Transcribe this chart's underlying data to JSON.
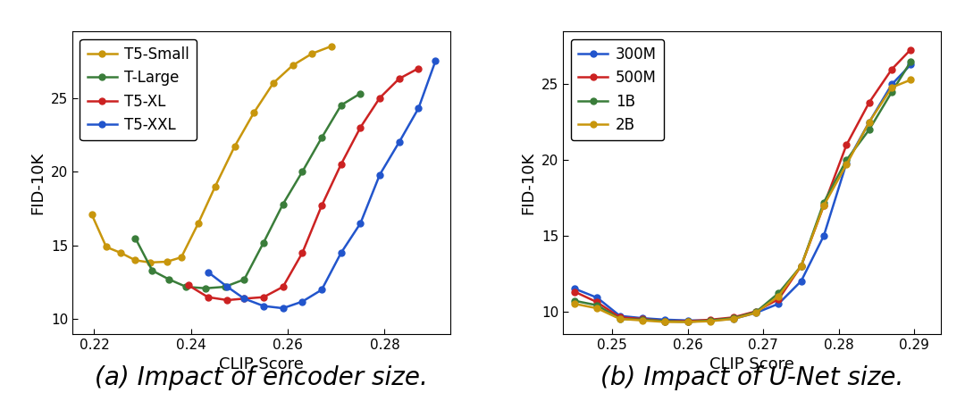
{
  "chart1": {
    "title": "(a) Impact of encoder size.",
    "xlabel": "CLIP Score",
    "ylabel": "FID-10K",
    "xlim": [
      0.2155,
      0.2935
    ],
    "ylim": [
      9.0,
      29.5
    ],
    "yticks": [
      10,
      15,
      20,
      25
    ],
    "xticks": [
      0.22,
      0.24,
      0.26,
      0.28
    ],
    "series": {
      "T5-Small": {
        "color": "#c8960c",
        "x": [
          0.2195,
          0.2225,
          0.2255,
          0.2285,
          0.2315,
          0.235,
          0.238,
          0.2415,
          0.245,
          0.249,
          0.253,
          0.257,
          0.261,
          0.265,
          0.269
        ],
        "y": [
          17.1,
          14.9,
          14.5,
          14.0,
          13.85,
          13.9,
          14.2,
          16.5,
          19.0,
          21.7,
          24.0,
          26.0,
          27.2,
          28.0,
          28.5
        ]
      },
      "T-Large": {
        "color": "#3a7d3a",
        "x": [
          0.2285,
          0.232,
          0.2355,
          0.239,
          0.243,
          0.247,
          0.251,
          0.255,
          0.259,
          0.263,
          0.267,
          0.271,
          0.275
        ],
        "y": [
          15.5,
          13.3,
          12.7,
          12.2,
          12.1,
          12.2,
          12.7,
          15.2,
          17.8,
          20.0,
          22.3,
          24.5,
          25.3
        ]
      },
      "T5-XL": {
        "color": "#cc2222",
        "x": [
          0.2395,
          0.2435,
          0.2475,
          0.251,
          0.255,
          0.259,
          0.263,
          0.267,
          0.271,
          0.275,
          0.279,
          0.283,
          0.287
        ],
        "y": [
          12.3,
          11.5,
          11.3,
          11.4,
          11.5,
          12.2,
          14.5,
          17.7,
          20.5,
          23.0,
          25.0,
          26.3,
          27.0
        ]
      },
      "T5-XXL": {
        "color": "#2255cc",
        "x": [
          0.2435,
          0.2475,
          0.251,
          0.255,
          0.259,
          0.263,
          0.267,
          0.271,
          0.275,
          0.279,
          0.283,
          0.287,
          0.2905
        ],
        "y": [
          13.2,
          12.2,
          11.4,
          10.9,
          10.75,
          11.2,
          12.0,
          14.5,
          16.5,
          19.8,
          22.0,
          24.3,
          27.5
        ]
      }
    }
  },
  "chart2": {
    "title": "(b) Impact of U-Net size.",
    "xlabel": "CLIP Score",
    "ylabel": "FID-10K",
    "xlim": [
      0.2435,
      0.2935
    ],
    "ylim": [
      8.5,
      28.5
    ],
    "yticks": [
      10,
      15,
      20,
      25
    ],
    "xticks": [
      0.25,
      0.26,
      0.27,
      0.28,
      0.29
    ],
    "series": {
      "300M": {
        "color": "#2255cc",
        "x": [
          0.245,
          0.248,
          0.251,
          0.254,
          0.257,
          0.26,
          0.263,
          0.266,
          0.269,
          0.272,
          0.275,
          0.278,
          0.281,
          0.284,
          0.287,
          0.2895
        ],
        "y": [
          11.5,
          10.9,
          9.7,
          9.55,
          9.45,
          9.4,
          9.4,
          9.5,
          9.9,
          10.5,
          12.0,
          15.0,
          19.8,
          22.5,
          25.0,
          26.3
        ]
      },
      "500M": {
        "color": "#cc2222",
        "x": [
          0.245,
          0.248,
          0.251,
          0.254,
          0.257,
          0.26,
          0.263,
          0.266,
          0.269,
          0.272,
          0.275,
          0.278,
          0.281,
          0.284,
          0.287,
          0.2895
        ],
        "y": [
          11.3,
          10.6,
          9.6,
          9.5,
          9.35,
          9.35,
          9.45,
          9.6,
          10.0,
          10.8,
          13.0,
          17.0,
          21.0,
          23.8,
          26.0,
          27.3
        ]
      },
      "1B": {
        "color": "#3a7d3a",
        "x": [
          0.245,
          0.248,
          0.251,
          0.254,
          0.257,
          0.26,
          0.263,
          0.266,
          0.269,
          0.272,
          0.275,
          0.278,
          0.281,
          0.284,
          0.287,
          0.2895
        ],
        "y": [
          10.7,
          10.4,
          9.5,
          9.45,
          9.35,
          9.3,
          9.4,
          9.55,
          9.95,
          11.2,
          13.0,
          17.2,
          20.0,
          22.0,
          24.5,
          26.5
        ]
      },
      "2B": {
        "color": "#c8960c",
        "x": [
          0.245,
          0.248,
          0.251,
          0.254,
          0.257,
          0.26,
          0.263,
          0.266,
          0.269,
          0.272,
          0.275,
          0.278,
          0.281,
          0.284,
          0.287,
          0.2895
        ],
        "y": [
          10.5,
          10.2,
          9.5,
          9.4,
          9.3,
          9.3,
          9.35,
          9.5,
          9.9,
          11.0,
          13.0,
          17.0,
          19.7,
          22.5,
          24.8,
          25.3
        ]
      }
    }
  },
  "bg_color": "#ffffff",
  "subtitle_fontsize": 20,
  "label_fontsize": 13,
  "tick_fontsize": 11,
  "legend_fontsize": 12,
  "marker": "o",
  "markersize": 5,
  "linewidth": 1.8
}
